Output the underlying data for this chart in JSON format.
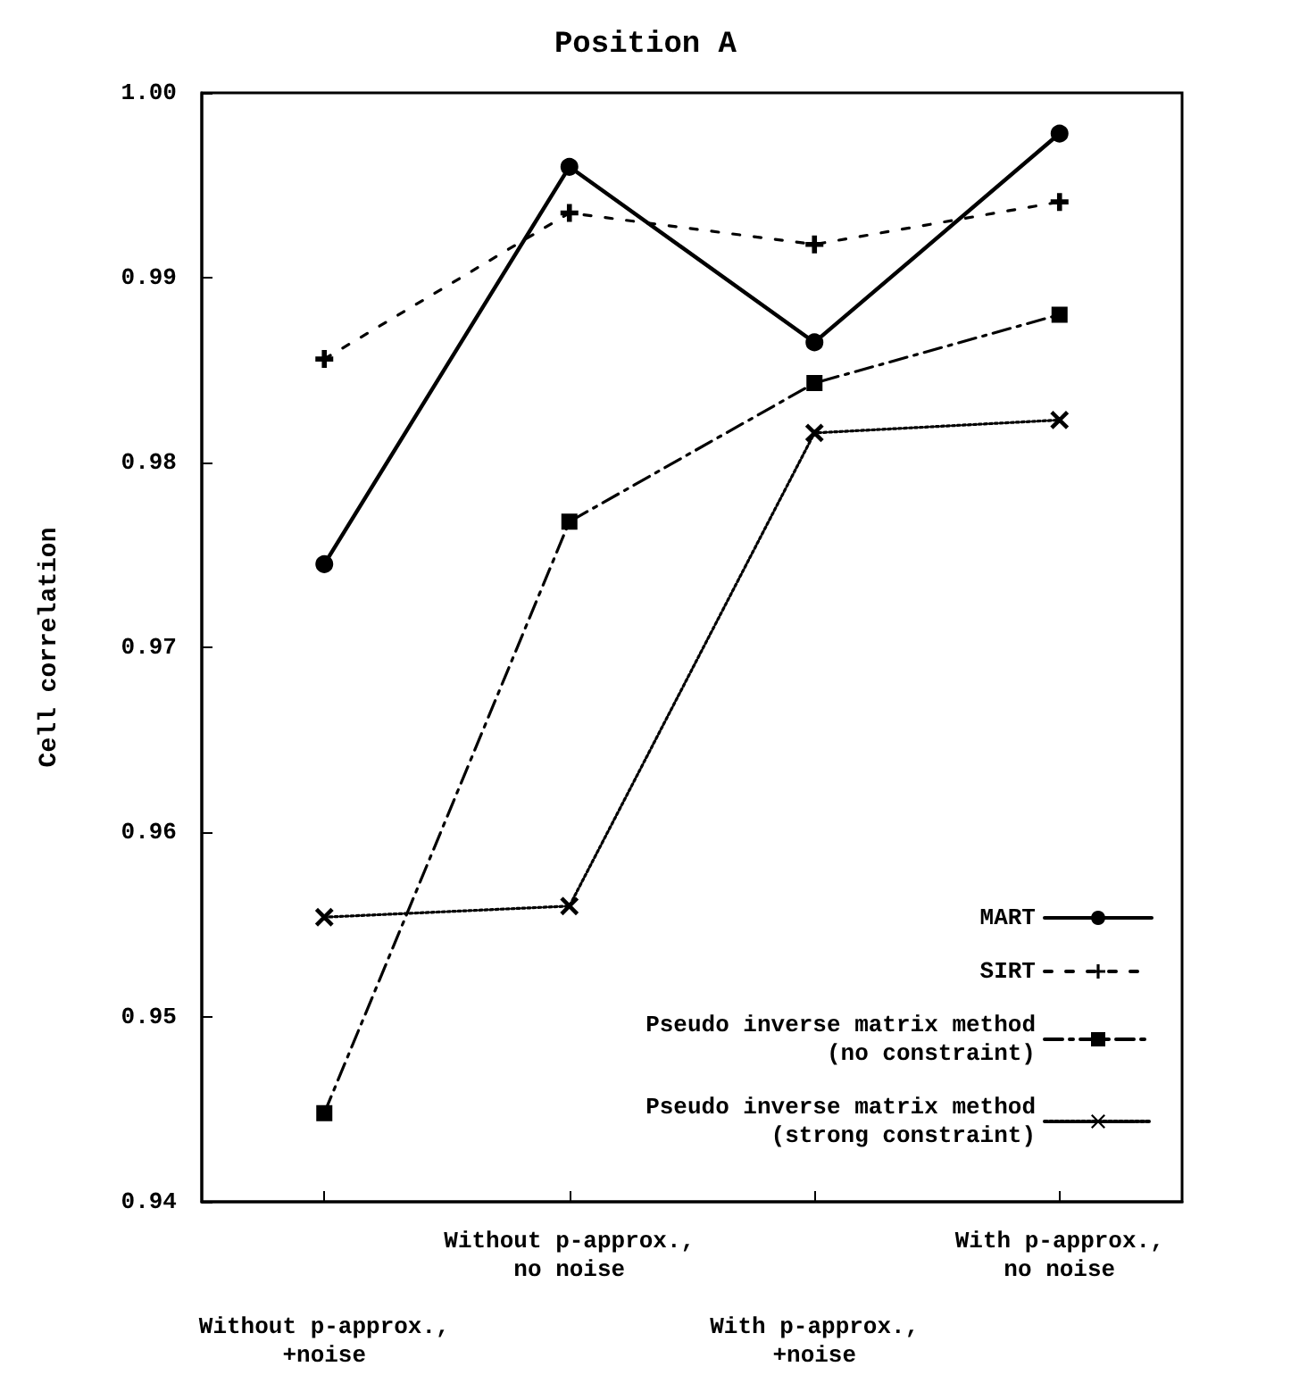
{
  "chart_data": {
    "type": "line",
    "title": "Position A",
    "ylabel": "Cell correlation",
    "categories": [
      "Without p-approx.,\n+noise",
      "Without p-approx.,\nno noise",
      "With p-approx.,\n+noise",
      "With p-approx.,\nno noise"
    ],
    "series": [
      {
        "name": "MART",
        "color": "#000000",
        "marker": "circle",
        "line_style": "solid",
        "values": [
          0.9745,
          0.996,
          0.9865,
          0.9978
        ]
      },
      {
        "name": "SIRT",
        "color": "#000000",
        "marker": "plus",
        "line_style": "dashed",
        "values": [
          0.9856,
          0.9935,
          0.9918,
          0.9941
        ]
      },
      {
        "name": "Pseudo inverse matrix method\n(no constraint)",
        "color": "#000000",
        "marker": "square",
        "line_style": "dashdot",
        "values": [
          0.9448,
          0.9768,
          0.9843,
          0.988
        ]
      },
      {
        "name": "Pseudo inverse matrix method\n(strong constraint)",
        "color": "#000000",
        "marker": "cross",
        "line_style": "dotted",
        "values": [
          0.9554,
          0.956,
          0.9816,
          0.9823
        ]
      }
    ],
    "ylim": [
      0.94,
      1.0
    ],
    "yticks": [
      0.94,
      0.95,
      0.96,
      0.97,
      0.98,
      0.99,
      {
        "value": 1.0,
        "label": "1.00"
      }
    ],
    "grid": false,
    "legend": "bottom right"
  }
}
